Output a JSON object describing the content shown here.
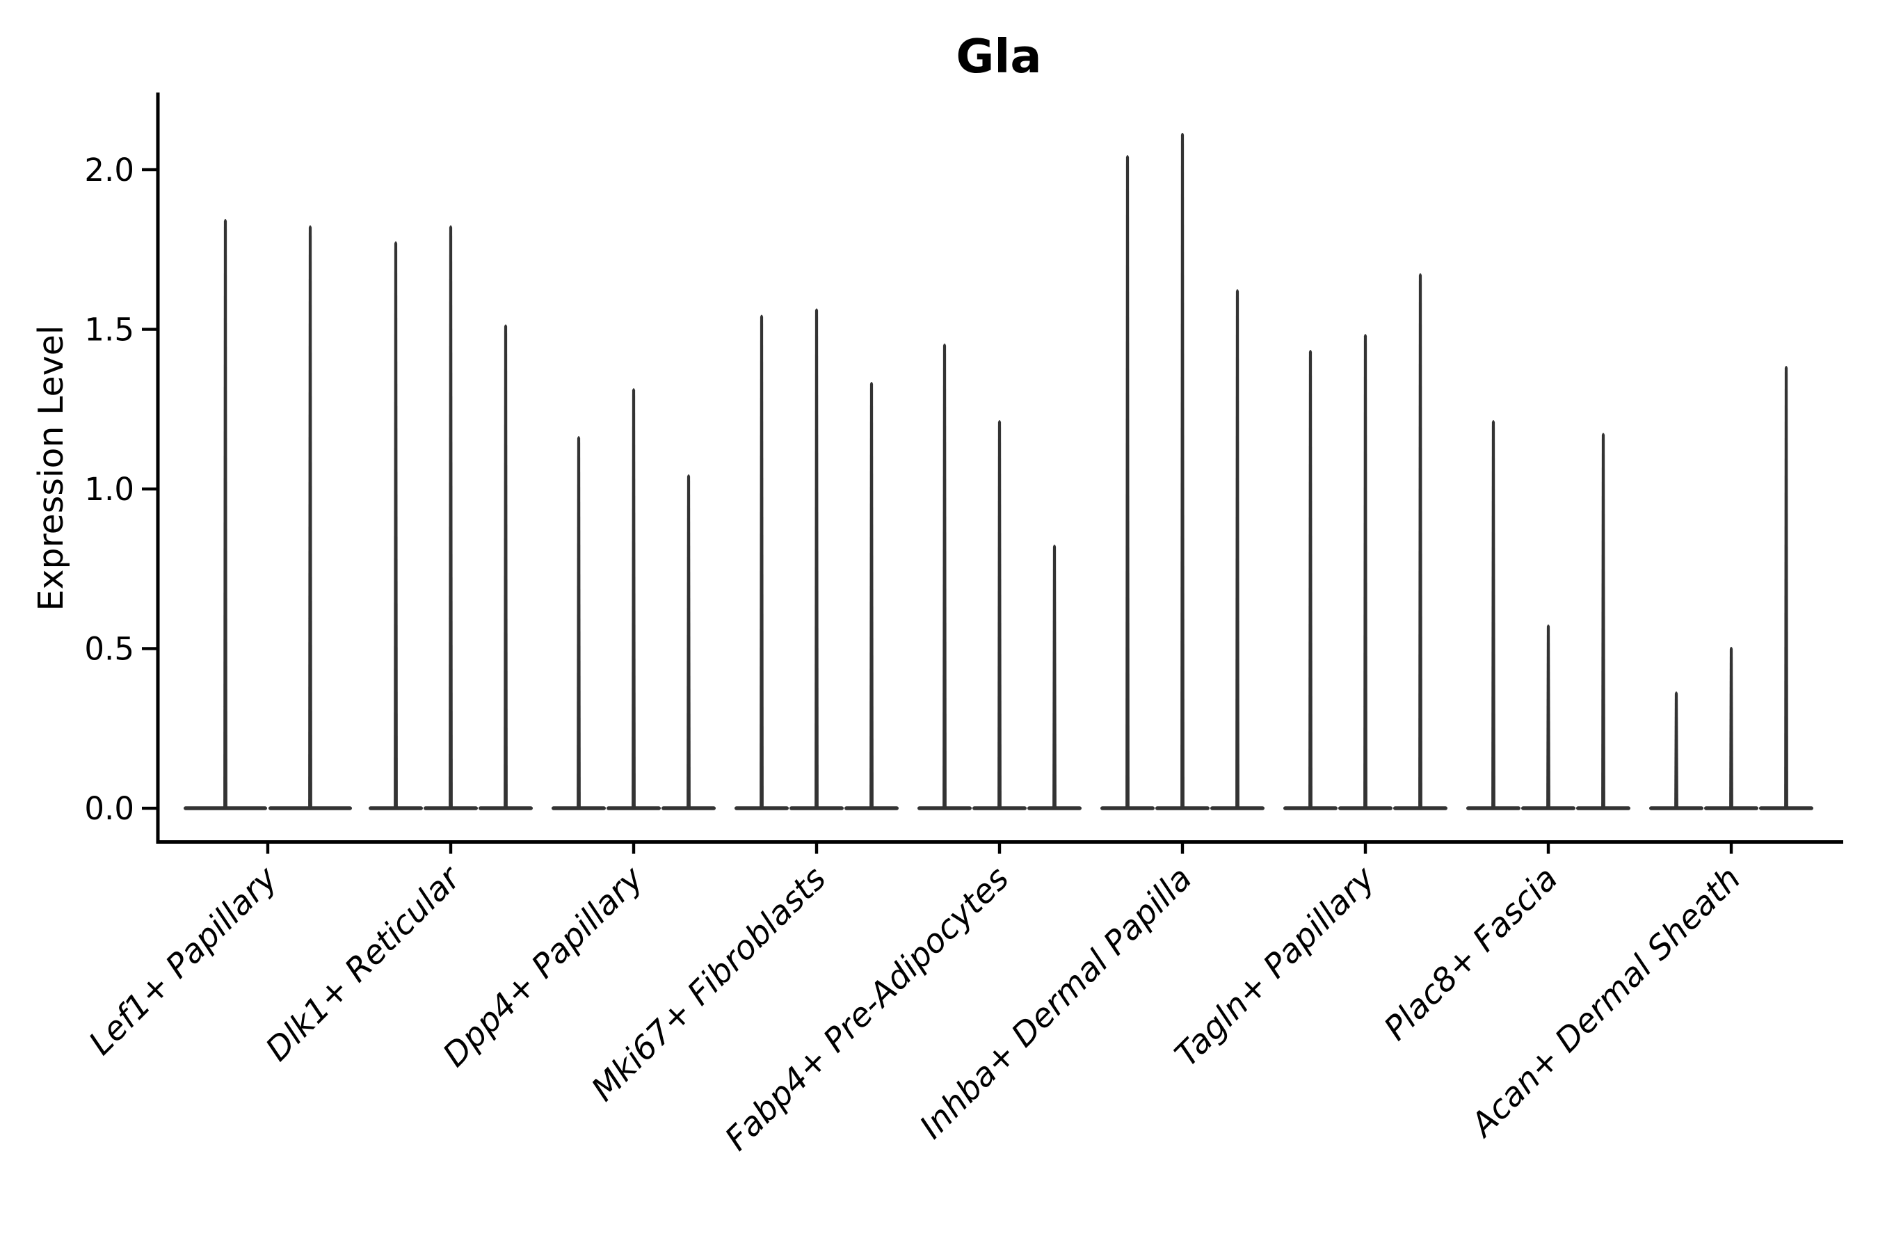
{
  "colors": {
    "violin": "#333333",
    "axis": "#000000",
    "text": "#000000",
    "background": "#ffffff"
  },
  "chart_data": {
    "type": "violin",
    "title": "Gla",
    "xlabel": "",
    "ylabel": "Expression Level",
    "ylim": [
      -0.1,
      2.24
    ],
    "grid": false,
    "legend": null,
    "yticks": {
      "values": [
        0.0,
        0.5,
        1.0,
        1.5,
        2.0
      ],
      "labels": [
        "0.0",
        "0.5",
        "1.0",
        "1.5",
        "2.0"
      ]
    },
    "categories": [
      "Lef1+ Papillary",
      "Dlk1+ Reticular",
      "Dpp4+ Papillary",
      "Mki67+ Fibroblasts",
      "Fabp4+ Pre-Adipocytes",
      "Inhba+ Dermal Papilla",
      "Tagln+ Papillary",
      "Plac8+ Fascia",
      "Acan+ Dermal Sheath"
    ],
    "groups": [
      {
        "label": "Lef1+ Papillary",
        "violins": 2,
        "peak_expression": [
          1.85,
          1.83
        ]
      },
      {
        "label": "Dlk1+ Reticular",
        "violins": 3,
        "peak_expression": [
          1.78,
          1.83,
          1.52
        ]
      },
      {
        "label": "Dpp4+ Papillary",
        "violins": 3,
        "peak_expression": [
          1.17,
          1.32,
          1.05
        ]
      },
      {
        "label": "Mki67+ Fibroblasts",
        "violins": 3,
        "peak_expression": [
          1.55,
          1.57,
          1.34
        ]
      },
      {
        "label": "Fabp4+ Pre-Adipocytes",
        "violins": 3,
        "peak_expression": [
          1.46,
          1.22,
          0.83
        ]
      },
      {
        "label": "Inhba+ Dermal Papilla",
        "violins": 3,
        "peak_expression": [
          2.05,
          2.12,
          1.63
        ]
      },
      {
        "label": "Tagln+ Papillary",
        "violins": 3,
        "peak_expression": [
          1.44,
          1.49,
          1.68
        ]
      },
      {
        "label": "Plac8+ Fascia",
        "violins": 3,
        "peak_expression": [
          1.22,
          0.58,
          1.18
        ]
      },
      {
        "label": "Acan+ Dermal Sheath",
        "violins": 3,
        "peak_expression": [
          0.37,
          0.51,
          1.39
        ]
      }
    ],
    "notes": "Each violin is a needle-thin density: a wide flat body at expression 0 and a thin spike rising to the peak expression value."
  }
}
